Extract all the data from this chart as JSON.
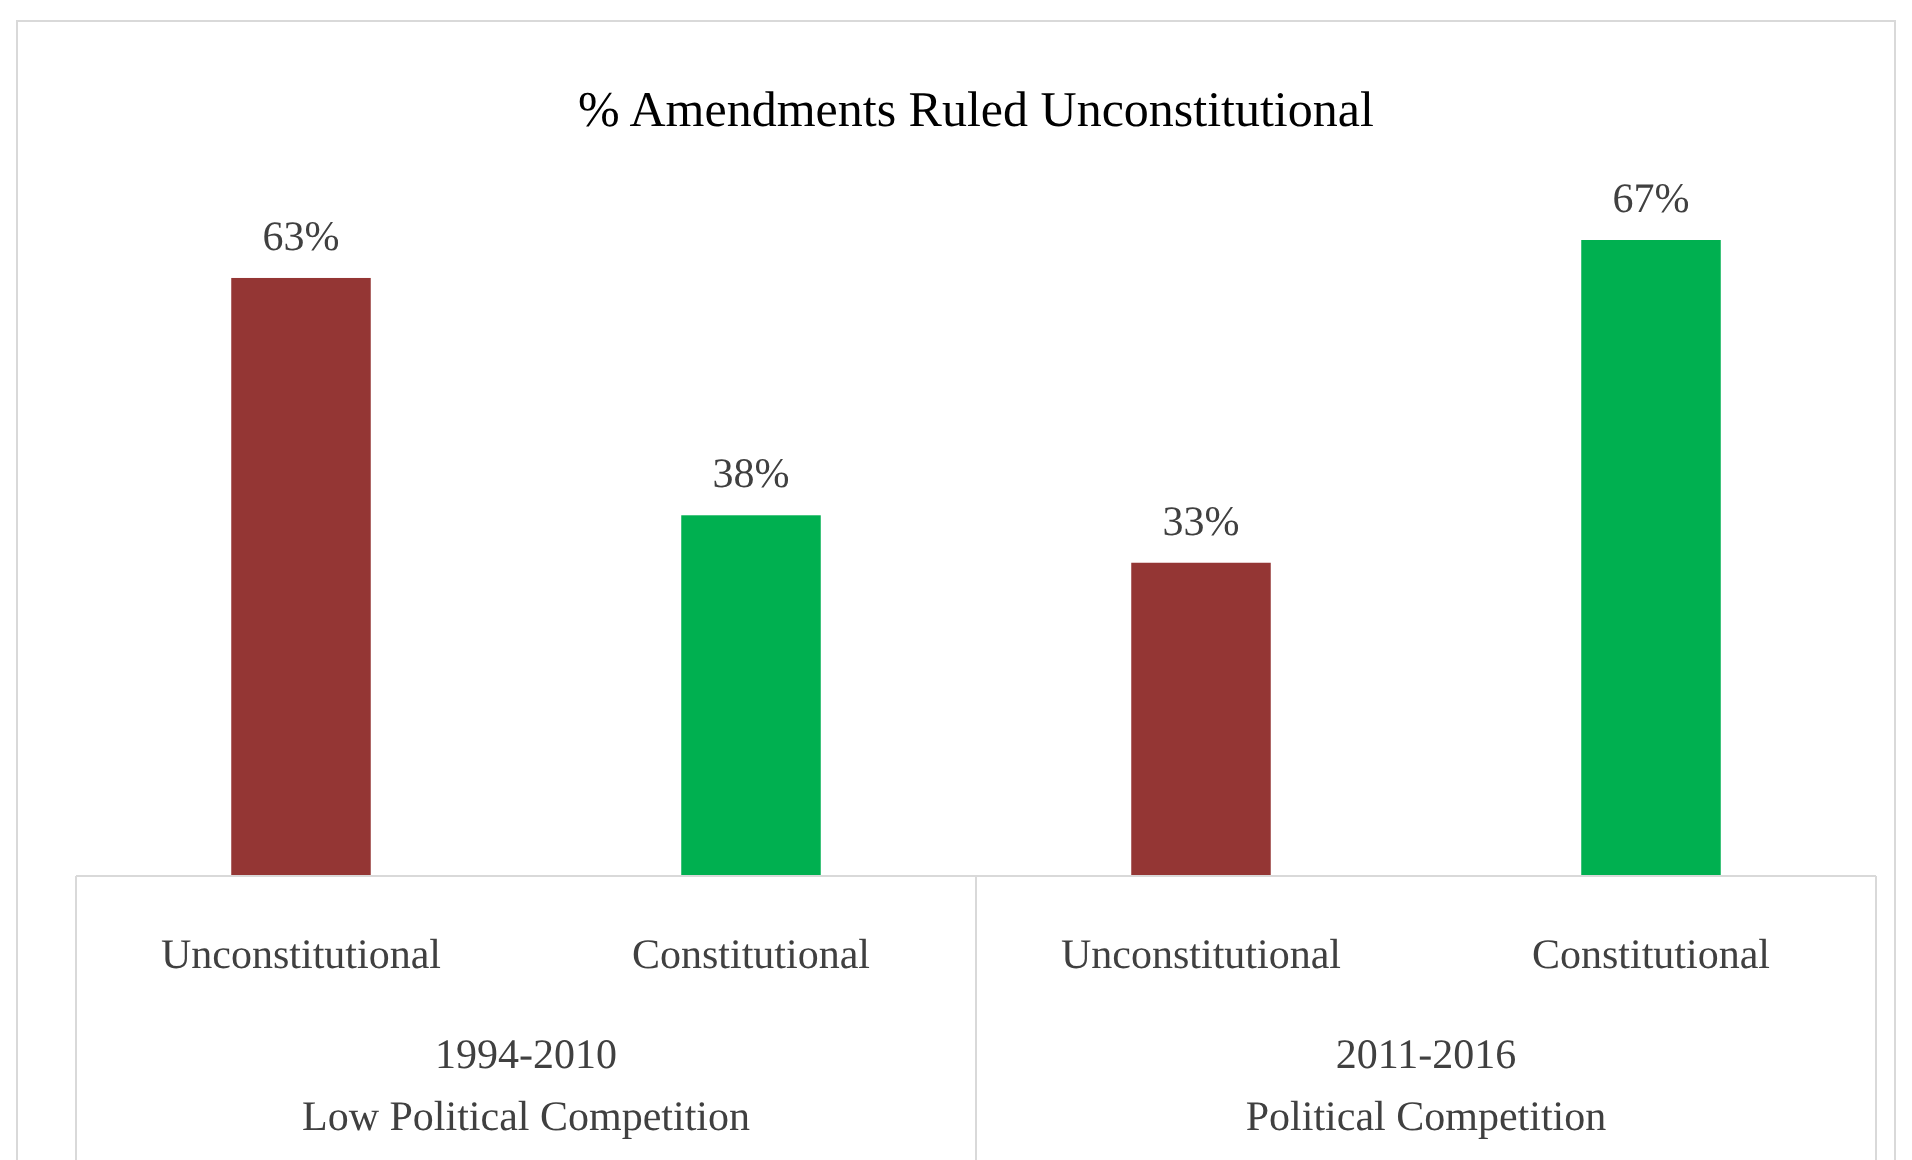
{
  "chart_data": {
    "type": "bar",
    "title": "% Amendments Ruled Unconstitutional",
    "categories": [
      "Unconstitutional",
      "Constitutional",
      "Unconstitutional",
      "Constitutional"
    ],
    "values": [
      63,
      38,
      33,
      67
    ],
    "colors": [
      "#943634",
      "#00b050",
      "#943634",
      "#00b050"
    ],
    "value_labels": [
      "63%",
      "38%",
      "33%",
      "67%"
    ],
    "annotations": [
      "1994-2010\nLow Political Competition",
      "2011-2016\nPolitical Competition"
    ],
    "grid": false
  }
}
